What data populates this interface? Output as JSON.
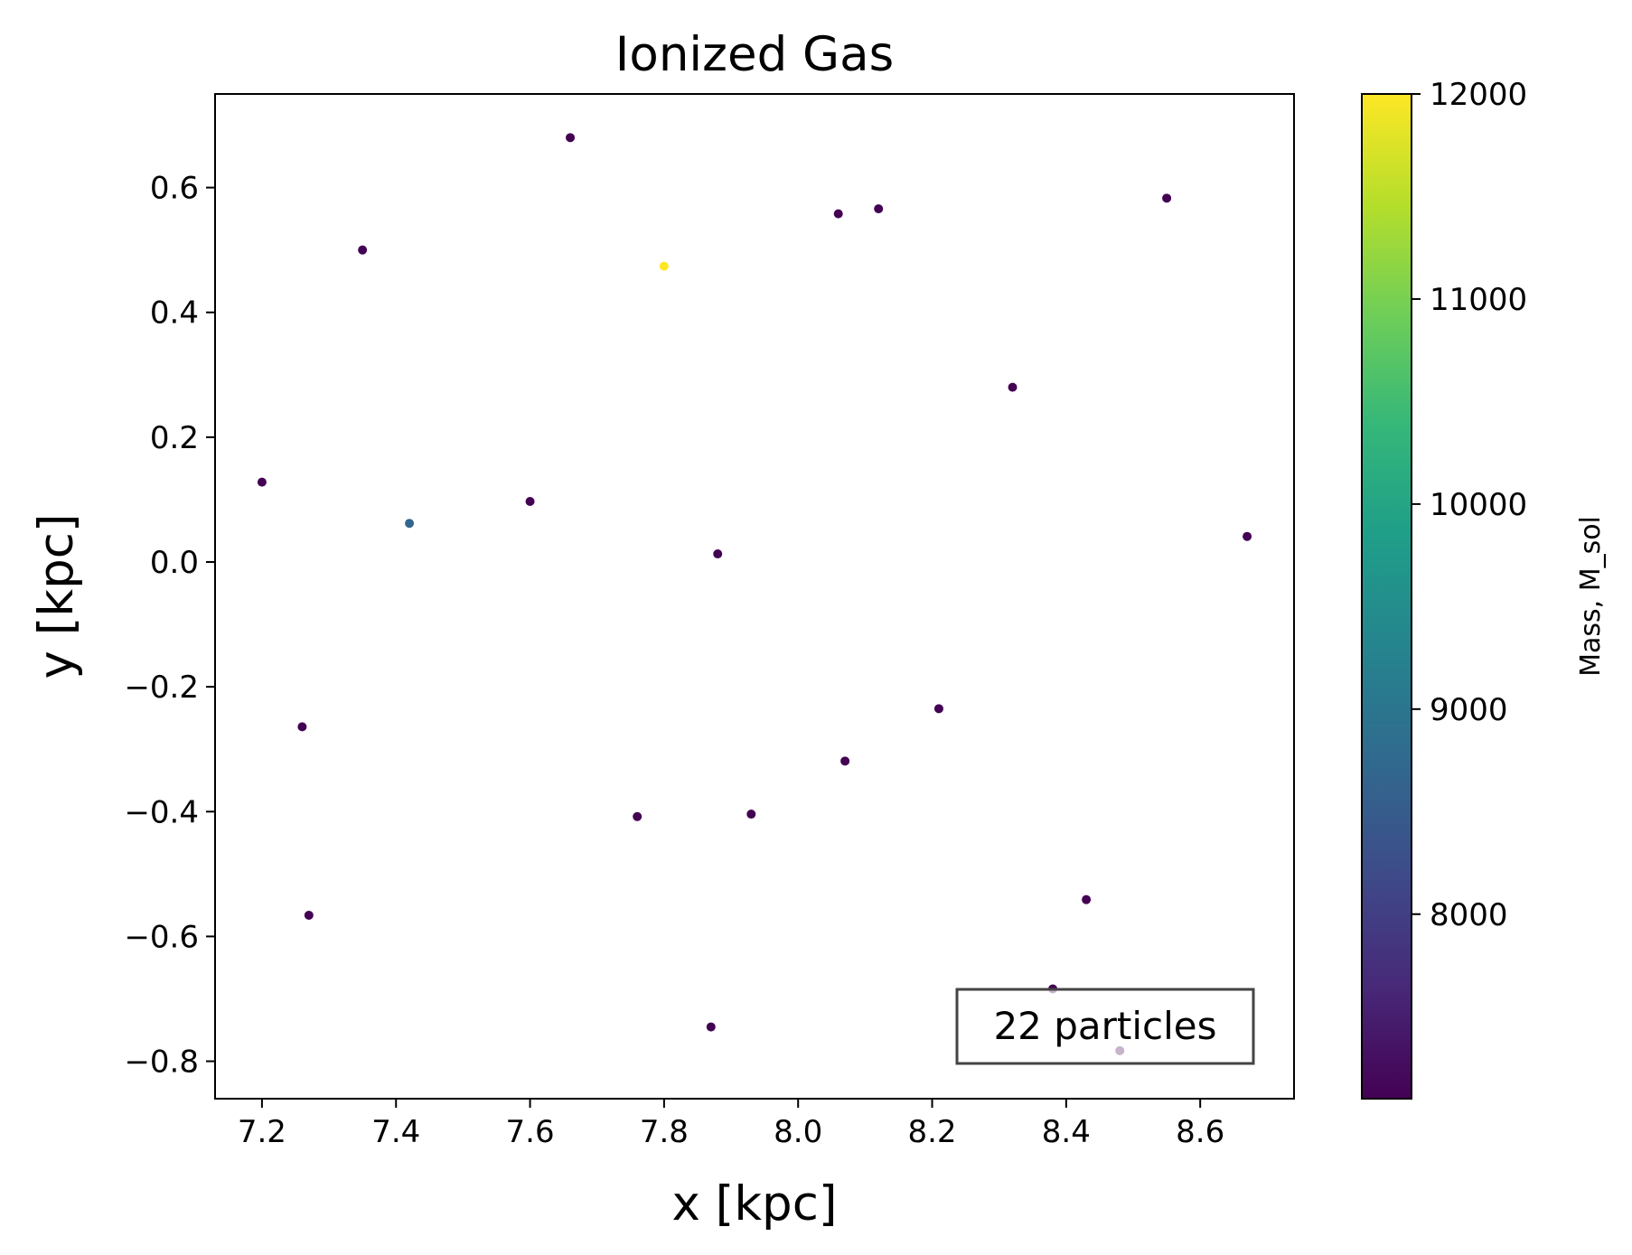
{
  "chart_data": {
    "type": "scatter",
    "title": "Ionized Gas",
    "xlabel": "x [kpc]",
    "ylabel": "y [kpc]",
    "xlim": [
      7.13,
      8.74
    ],
    "ylim": [
      -0.86,
      0.75
    ],
    "xticks": [
      7.2,
      7.4,
      7.6,
      7.8,
      8.0,
      8.2,
      8.4,
      8.6
    ],
    "xtick_labels": [
      "7.2",
      "7.4",
      "7.6",
      "7.8",
      "8.0",
      "8.2",
      "8.4",
      "8.6"
    ],
    "yticks": [
      -0.8,
      -0.6,
      -0.4,
      -0.2,
      0.0,
      0.2,
      0.4,
      0.6
    ],
    "ytick_labels": [
      "−0.8",
      "−0.6",
      "−0.4",
      "−0.2",
      "0.0",
      "0.2",
      "0.4",
      "0.6"
    ],
    "grid": false,
    "colormap": "viridis",
    "colorbar": {
      "label": "Mass, M_sol",
      "range": [
        7100,
        12000
      ],
      "ticks": [
        8000,
        9000,
        10000,
        11000,
        12000
      ],
      "tick_labels": [
        "8000",
        "9000",
        "10000",
        "11000",
        "12000"
      ]
    },
    "annotation": "22 particles",
    "points": [
      {
        "x": 7.2,
        "y": 0.128,
        "mass": 7100
      },
      {
        "x": 7.26,
        "y": -0.264,
        "mass": 7100
      },
      {
        "x": 7.27,
        "y": -0.566,
        "mass": 7100
      },
      {
        "x": 7.35,
        "y": 0.5,
        "mass": 7100
      },
      {
        "x": 7.42,
        "y": 0.062,
        "mass": 8700
      },
      {
        "x": 7.6,
        "y": 0.097,
        "mass": 7100
      },
      {
        "x": 7.66,
        "y": 0.68,
        "mass": 7100
      },
      {
        "x": 7.76,
        "y": -0.408,
        "mass": 7100
      },
      {
        "x": 7.8,
        "y": 0.474,
        "mass": 12000
      },
      {
        "x": 7.87,
        "y": -0.745,
        "mass": 7100
      },
      {
        "x": 7.88,
        "y": 0.013,
        "mass": 7100
      },
      {
        "x": 7.93,
        "y": -0.404,
        "mass": 7100
      },
      {
        "x": 8.06,
        "y": 0.558,
        "mass": 7100
      },
      {
        "x": 8.07,
        "y": -0.319,
        "mass": 7100
      },
      {
        "x": 8.12,
        "y": 0.566,
        "mass": 7100
      },
      {
        "x": 8.21,
        "y": -0.235,
        "mass": 7100
      },
      {
        "x": 8.32,
        "y": 0.28,
        "mass": 7100
      },
      {
        "x": 8.38,
        "y": -0.684,
        "mass": 7100
      },
      {
        "x": 8.43,
        "y": -0.541,
        "mass": 7100
      },
      {
        "x": 8.48,
        "y": -0.783,
        "mass": 7100
      },
      {
        "x": 8.55,
        "y": 0.583,
        "mass": 7100
      },
      {
        "x": 8.67,
        "y": 0.041,
        "mass": 7100
      }
    ]
  }
}
